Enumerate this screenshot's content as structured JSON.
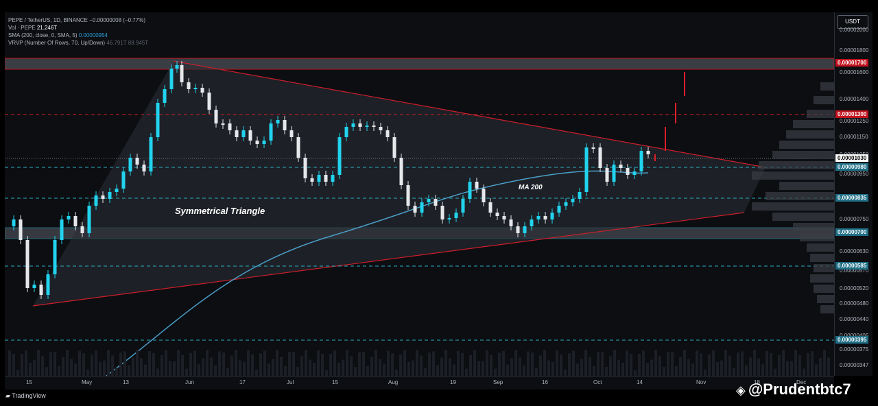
{
  "legend": {
    "symbol": "PEPE / TetherUS, 1D, BINANCE",
    "change": "−0.00000008 (−0.77%)",
    "vol_label": "Vol · PEPE",
    "vol_value": "21.246T",
    "sma_label": "SMA (200, close, 0, SMA, 5)",
    "sma_value": "0.00000954",
    "vrvp_label": "VRVP (Number Of Rows, 70, Up/Down)",
    "vrvp_values": "46.791T  88.945T"
  },
  "currency_button": "USDT",
  "annotations": {
    "pattern": "Symmetrical Triangle",
    "ma": "MA 200"
  },
  "price_axis": {
    "ticks": [
      "0.00002000",
      "0.00001800",
      "0.00001600",
      "0.00001400",
      "0.00001250",
      "0.00001150",
      "0.00001050",
      "0.00000950",
      "0.00000750",
      "0.00000630",
      "0.00000570",
      "0.00000520",
      "0.00000480",
      "0.00000440",
      "0.00000405",
      "0.00000375",
      "0.00000347"
    ],
    "labels": [
      {
        "text": "0.00001700",
        "color": "#c2121f"
      },
      {
        "text": "0.00001300",
        "color": "#c2121f"
      },
      {
        "text": "0.00001030",
        "color": "#ffffff",
        "text_color": "#000000"
      },
      {
        "text": "0.00000980",
        "color": "#1f6f86"
      },
      {
        "text": "0.00000835",
        "color": "#1f6f86"
      },
      {
        "text": "0.00000700",
        "color": "#1f6f86"
      },
      {
        "text": "0.00000585",
        "color": "#1f6f86"
      },
      {
        "text": "0.00000395",
        "color": "#1f6f86"
      }
    ]
  },
  "time_axis": [
    "15",
    "May",
    "13",
    "Jun",
    "17",
    "Jul",
    "15",
    "Aug",
    "19",
    "Sep",
    "16",
    "Oct",
    "14",
    "Nov",
    "18",
    "Dec"
  ],
  "footer": {
    "brand": "TradingView",
    "watermark": "@Prudentbtc7"
  }
}
